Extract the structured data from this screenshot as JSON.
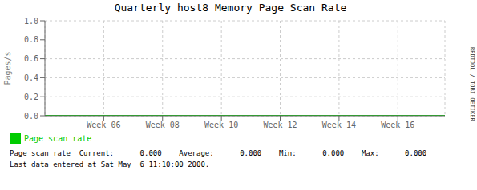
{
  "chart_data": {
    "type": "line",
    "title": "Quarterly host8 Memory Page Scan Rate",
    "ylabel": "Pages/s",
    "x": [
      0,
      6.8
    ],
    "series": [
      {
        "name": "Page scan rate",
        "color": "#00cc00",
        "values": [
          0.0,
          0.0
        ]
      }
    ],
    "xlim": [
      0,
      6.8
    ],
    "xticks": [
      {
        "value": 1,
        "label": "Week 06"
      },
      {
        "value": 2,
        "label": "Week 08"
      },
      {
        "value": 3,
        "label": "Week 10"
      },
      {
        "value": 4,
        "label": "Week 12"
      },
      {
        "value": 5,
        "label": "Week 14"
      },
      {
        "value": 6,
        "label": "Week 16"
      }
    ],
    "ylim": [
      0.0,
      1.0
    ],
    "yticks": [
      {
        "value": 0.0,
        "label": "0.0"
      },
      0.2,
      0.4,
      0.6,
      0.8,
      {
        "value": 1.0,
        "label": "1.0"
      }
    ],
    "grid": true,
    "legend": "bottom",
    "annotations": [
      "RRDTOOL / TOBI OETIKER",
      "Page scan rate  Current:      0.000    Average:      0.000    Min:      0.000    Max:      0.000",
      "Last data entered at Sat May  6 11:10:00 2000."
    ]
  }
}
